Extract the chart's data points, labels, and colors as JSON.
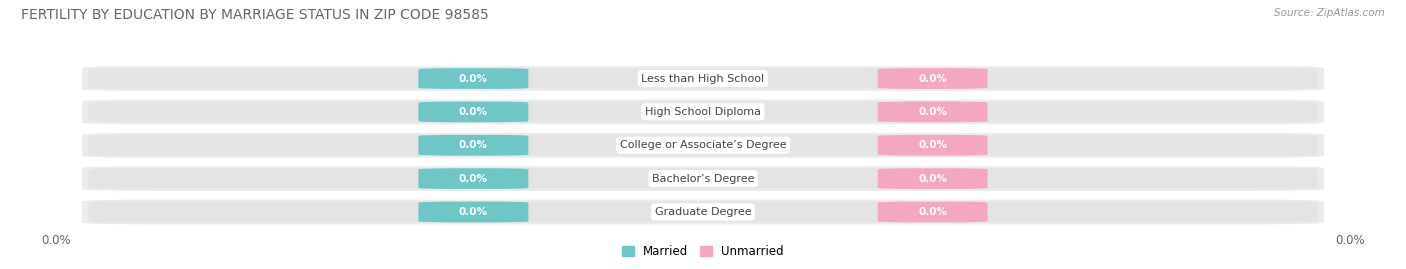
{
  "title": "FERTILITY BY EDUCATION BY MARRIAGE STATUS IN ZIP CODE 98585",
  "source": "Source: ZipAtlas.com",
  "categories": [
    "Less than High School",
    "High School Diploma",
    "College or Associate’s Degree",
    "Bachelor’s Degree",
    "Graduate Degree"
  ],
  "married_values": [
    0.0,
    0.0,
    0.0,
    0.0,
    0.0
  ],
  "unmarried_values": [
    0.0,
    0.0,
    0.0,
    0.0,
    0.0
  ],
  "married_color": "#6ec6c7",
  "unmarried_color": "#f4a8c0",
  "bar_bg_color": "#e4e4e4",
  "row_bg_color": "#ebebeb",
  "label_color": "#ffffff",
  "category_label_color": "#444444",
  "title_color": "#666666",
  "title_fontsize": 10,
  "value_label": "0.0%",
  "legend_married": "Married",
  "legend_unmarried": "Unmarried",
  "fig_bg_color": "#ffffff",
  "source_color": "#999999"
}
